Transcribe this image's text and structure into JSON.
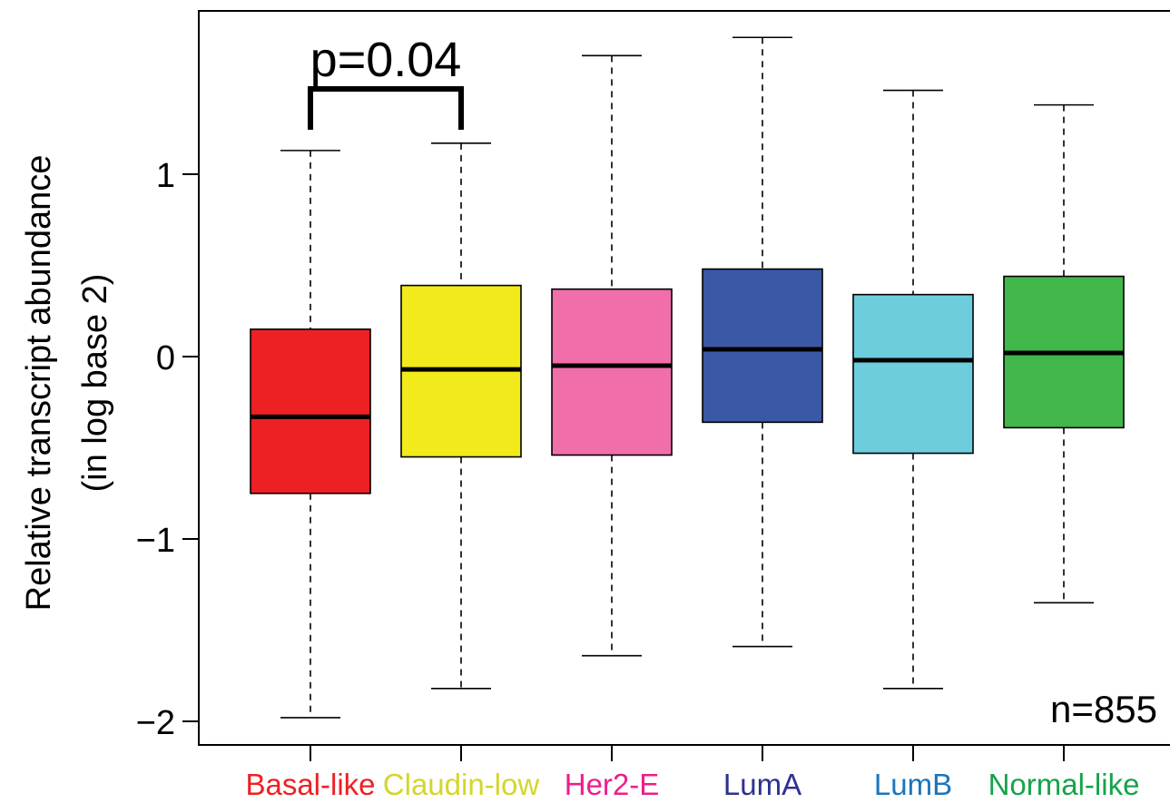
{
  "chart_data": {
    "type": "box",
    "ylabel_line1": "Relative transcript abundance",
    "ylabel_line2": "(in log base 2)",
    "ylim": [
      -2.1,
      1.9
    ],
    "yticks": [
      {
        "value": 1,
        "label": "1"
      },
      {
        "value": 0,
        "label": "0"
      },
      {
        "value": -1,
        "label": "−1"
      },
      {
        "value": -2,
        "label": "−2"
      }
    ],
    "sample_size_label": "n=855",
    "significance": {
      "label": "p=0.04",
      "between": [
        0,
        1
      ]
    },
    "groups": [
      {
        "name": "Basal-like",
        "color": "#ED2024",
        "label_color": "#ED2024",
        "whisker_low": -1.98,
        "q1": -0.75,
        "median": -0.33,
        "q3": 0.15,
        "whisker_high": 1.13
      },
      {
        "name": "Claudin-low",
        "color": "#F2EA1A",
        "label_color": "#D4D62A",
        "whisker_low": -1.82,
        "q1": -0.55,
        "median": -0.07,
        "q3": 0.39,
        "whisker_high": 1.17
      },
      {
        "name": "Her2-E",
        "color": "#F06EAA",
        "label_color": "#EC1E8C",
        "whisker_low": -1.64,
        "q1": -0.54,
        "median": -0.05,
        "q3": 0.37,
        "whisker_high": 1.65
      },
      {
        "name": "LumA",
        "color": "#3A58A6",
        "label_color": "#2E3191",
        "whisker_low": -1.59,
        "q1": -0.36,
        "median": 0.04,
        "q3": 0.48,
        "whisker_high": 1.75
      },
      {
        "name": "LumB",
        "color": "#6ECDDC",
        "label_color": "#1C75BC",
        "whisker_low": -1.82,
        "q1": -0.53,
        "median": -0.02,
        "q3": 0.34,
        "whisker_high": 1.46
      },
      {
        "name": "Normal-like",
        "color": "#41B649",
        "label_color": "#16A34A",
        "whisker_low": -1.35,
        "q1": -0.39,
        "median": 0.02,
        "q3": 0.44,
        "whisker_high": 1.38
      }
    ]
  }
}
